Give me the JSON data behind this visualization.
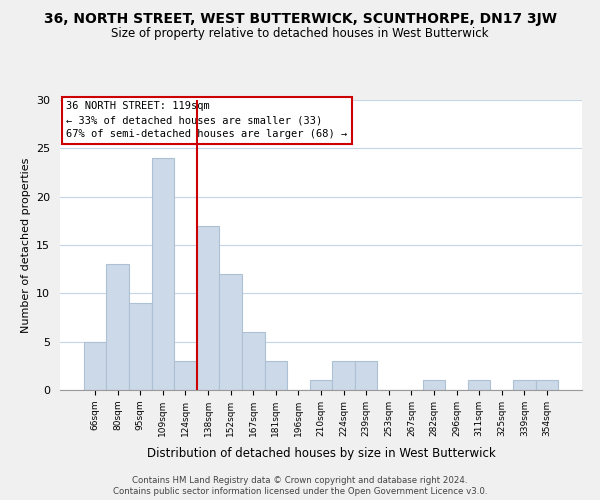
{
  "title": "36, NORTH STREET, WEST BUTTERWICK, SCUNTHORPE, DN17 3JW",
  "subtitle": "Size of property relative to detached houses in West Butterwick",
  "xlabel": "Distribution of detached houses by size in West Butterwick",
  "ylabel": "Number of detached properties",
  "bin_labels": [
    "66sqm",
    "80sqm",
    "95sqm",
    "109sqm",
    "124sqm",
    "138sqm",
    "152sqm",
    "167sqm",
    "181sqm",
    "196sqm",
    "210sqm",
    "224sqm",
    "239sqm",
    "253sqm",
    "267sqm",
    "282sqm",
    "296sqm",
    "311sqm",
    "325sqm",
    "339sqm",
    "354sqm"
  ],
  "bar_heights": [
    5,
    13,
    9,
    24,
    3,
    17,
    12,
    6,
    3,
    0,
    1,
    3,
    3,
    0,
    0,
    1,
    0,
    1,
    0,
    1,
    1
  ],
  "bar_color": "#ccd9e8",
  "bar_edge_color": "#aec0d4",
  "vline_color": "#cc0000",
  "annotation_text": "36 NORTH STREET: 119sqm\n← 33% of detached houses are smaller (33)\n67% of semi-detached houses are larger (68) →",
  "ylim": [
    0,
    30
  ],
  "yticks": [
    0,
    5,
    10,
    15,
    20,
    25,
    30
  ],
  "footer_line1": "Contains HM Land Registry data © Crown copyright and database right 2024.",
  "footer_line2": "Contains public sector information licensed under the Open Government Licence v3.0.",
  "bg_color": "#f0f0f0",
  "plot_bg_color": "#ffffff",
  "grid_color": "#c5d5e5"
}
